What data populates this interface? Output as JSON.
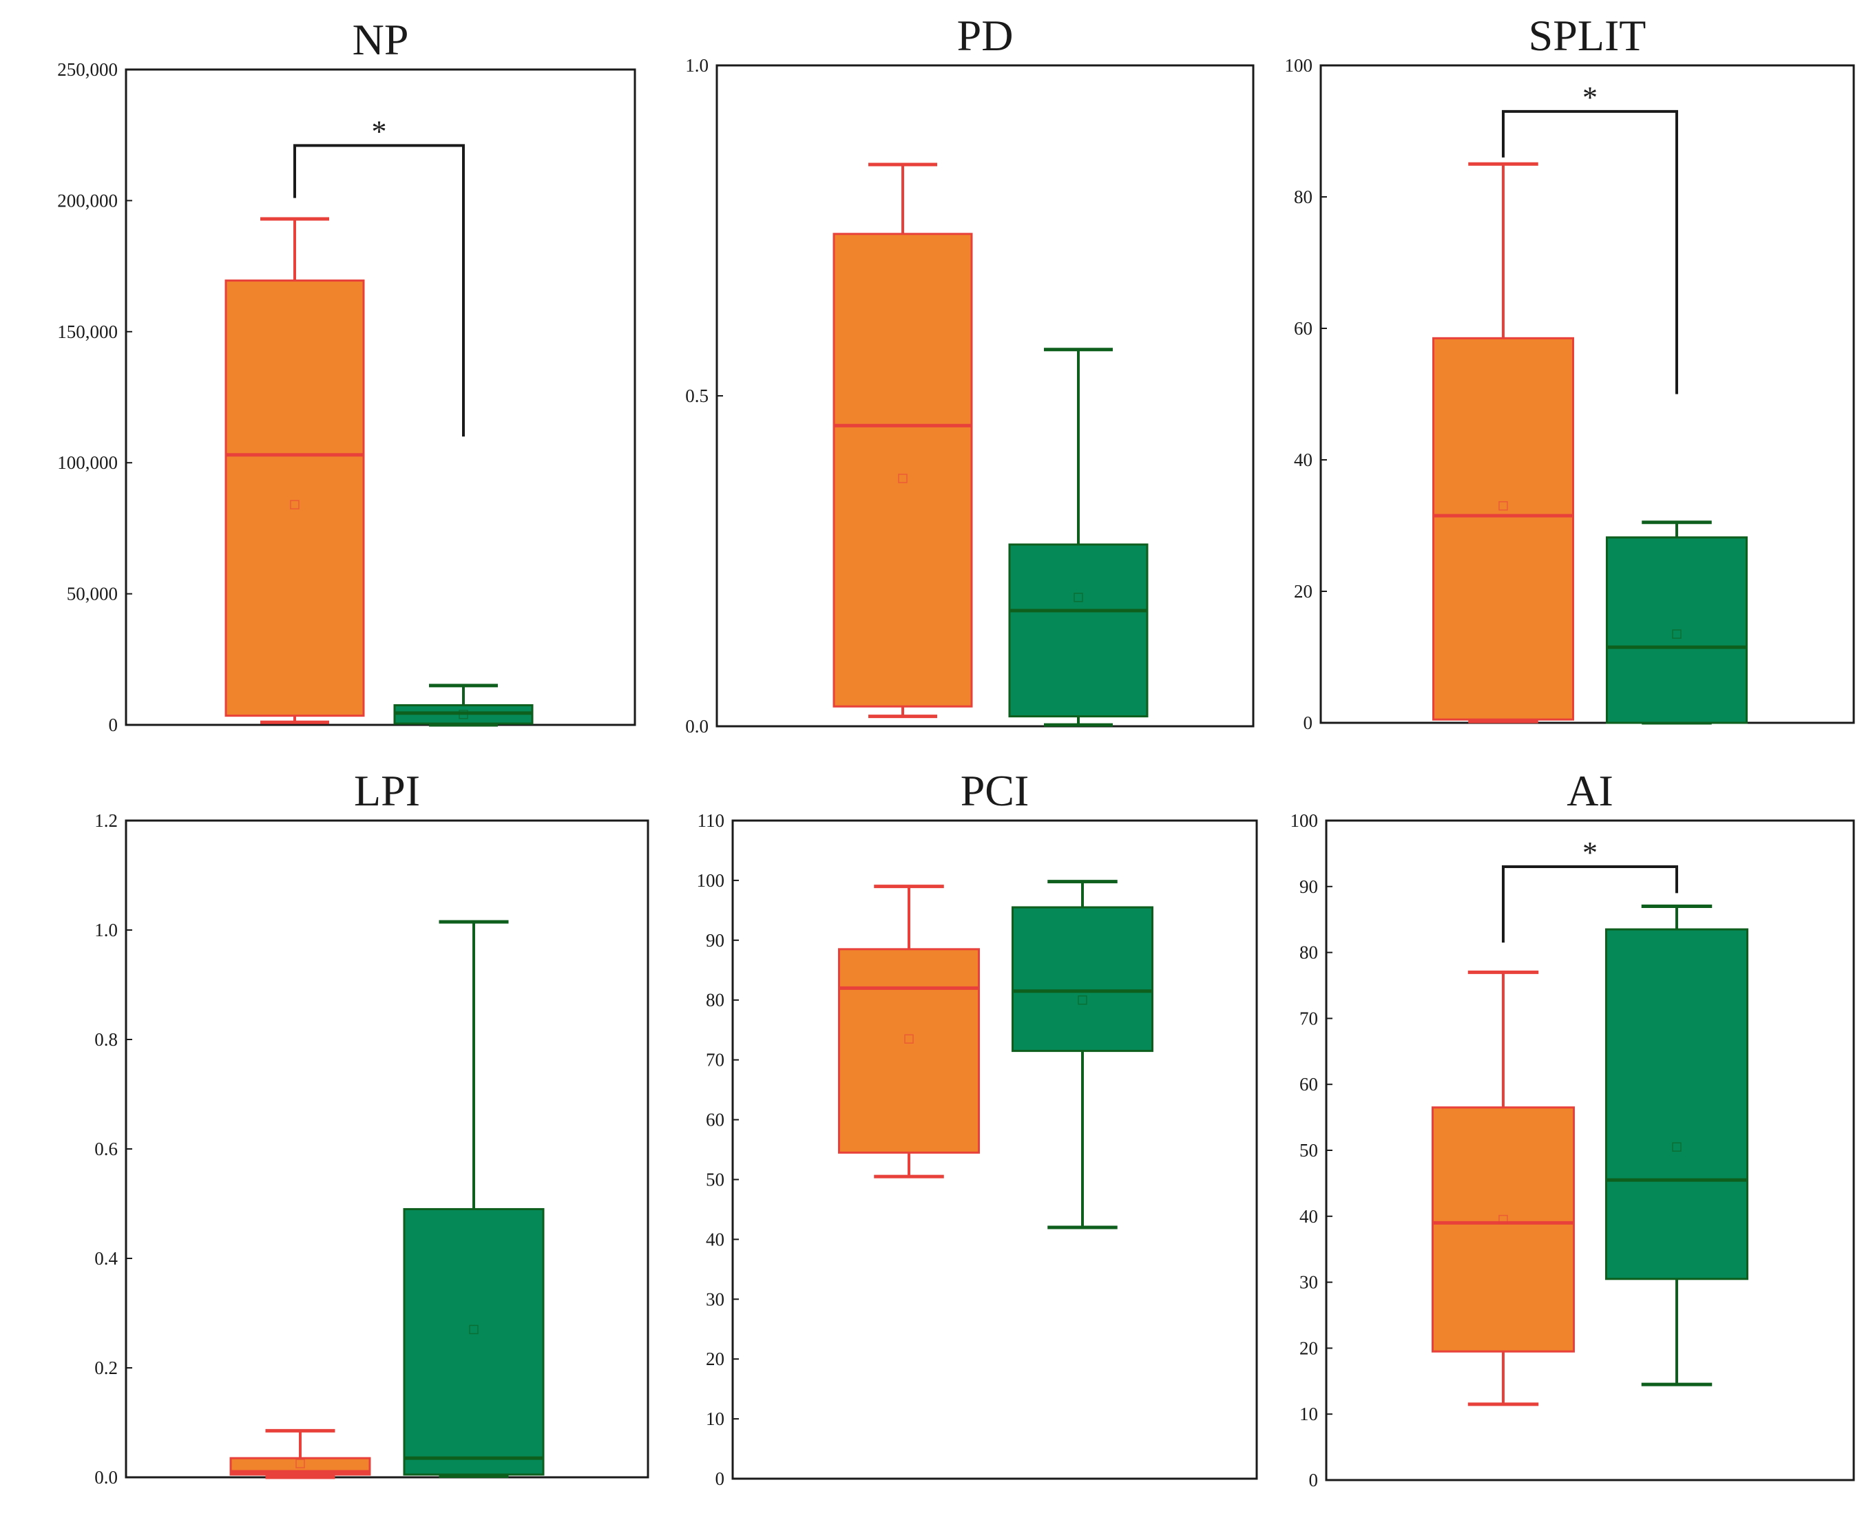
{
  "colors": {
    "group_a_fill": "#F0842C",
    "group_a_line": "#E8403A",
    "group_b_fill": "#058A57",
    "group_b_line": "#0E5E1E",
    "bracket": "#1a1a1a",
    "frame": "#1a1a1a"
  },
  "chart_data": [
    {
      "type": "box",
      "title": "NP",
      "ylim": [
        0,
        250000
      ],
      "yticks": [
        0,
        50000,
        100000,
        150000,
        200000,
        250000
      ],
      "ytick_labels": [
        "0",
        "50,000",
        "100,000",
        "150,000",
        "200,000",
        "250,000"
      ],
      "boxes": [
        {
          "group": "A",
          "min": 1000,
          "q1": 3500,
          "median": 103000,
          "q3": 169500,
          "max": 193000,
          "mean": 84000
        },
        {
          "group": "B",
          "min": 0,
          "q1": 500,
          "median": 4500,
          "q3": 7500,
          "max": 15000,
          "mean": 4000
        }
      ],
      "significance": {
        "label": "*",
        "between": [
          "A",
          "B"
        ],
        "bracket_y": 221000,
        "left_end": 201000,
        "right_end": 110000
      }
    },
    {
      "type": "box",
      "title": "PD",
      "ylim": [
        0,
        1.0
      ],
      "yticks": [
        0,
        0.5,
        1.0
      ],
      "ytick_labels": [
        "0.0",
        "0.5",
        "1.0"
      ],
      "boxes": [
        {
          "group": "A",
          "min": 0.015,
          "q1": 0.03,
          "median": 0.455,
          "q3": 0.745,
          "max": 0.85,
          "mean": 0.375
        },
        {
          "group": "B",
          "min": 0.002,
          "q1": 0.015,
          "median": 0.175,
          "q3": 0.275,
          "max": 0.57,
          "mean": 0.195
        }
      ]
    },
    {
      "type": "box",
      "title": "SPLIT",
      "ylim": [
        0,
        100
      ],
      "yticks": [
        0,
        20,
        40,
        60,
        80,
        100
      ],
      "ytick_labels": [
        "0",
        "20",
        "40",
        "60",
        "80",
        "100"
      ],
      "boxes": [
        {
          "group": "A",
          "min": 0.2,
          "q1": 0.5,
          "median": 31.5,
          "q3": 58.5,
          "max": 85,
          "mean": 33
        },
        {
          "group": "B",
          "min": 0,
          "q1": 0,
          "median": 11.5,
          "q3": 28.2,
          "max": 30.5,
          "mean": 13.5
        }
      ],
      "significance": {
        "label": "*",
        "between": [
          "A",
          "B"
        ],
        "bracket_y": 93,
        "left_end": 86,
        "right_end": 50
      }
    },
    {
      "type": "box",
      "title": "LPI",
      "ylim": [
        0,
        1.2
      ],
      "yticks": [
        0,
        0.2,
        0.4,
        0.6,
        0.8,
        1.0,
        1.2
      ],
      "ytick_labels": [
        "0.0",
        "0.2",
        "0.4",
        "0.6",
        "0.8",
        "1.0",
        "1.2"
      ],
      "boxes": [
        {
          "group": "A",
          "min": 0.0,
          "q1": 0.005,
          "median": 0.01,
          "q3": 0.035,
          "max": 0.085,
          "mean": 0.025
        },
        {
          "group": "B",
          "min": 0.002,
          "q1": 0.005,
          "median": 0.035,
          "q3": 0.49,
          "max": 1.015,
          "mean": 0.27
        }
      ]
    },
    {
      "type": "box",
      "title": "PCI",
      "ylim": [
        0,
        110
      ],
      "yticks": [
        0,
        10,
        20,
        30,
        40,
        50,
        60,
        70,
        80,
        90,
        100,
        110
      ],
      "ytick_labels": [
        "0",
        "10",
        "20",
        "30",
        "40",
        "50",
        "60",
        "70",
        "80",
        "90",
        "100",
        "110"
      ],
      "boxes": [
        {
          "group": "A",
          "min": 50.5,
          "q1": 54.5,
          "median": 82,
          "q3": 88.5,
          "max": 99,
          "mean": 73.5
        },
        {
          "group": "B",
          "min": 42,
          "q1": 71.5,
          "median": 81.5,
          "q3": 95.5,
          "max": 99.8,
          "mean": 80
        }
      ]
    },
    {
      "type": "box",
      "title": "AI",
      "ylim": [
        0,
        100
      ],
      "yticks": [
        0,
        10,
        20,
        30,
        40,
        50,
        60,
        70,
        80,
        90,
        100
      ],
      "ytick_labels": [
        "0",
        "10",
        "20",
        "30",
        "40",
        "50",
        "60",
        "70",
        "80",
        "90",
        "100"
      ],
      "boxes": [
        {
          "group": "A",
          "min": 11.5,
          "q1": 19.5,
          "median": 39,
          "q3": 56.5,
          "max": 77,
          "mean": 39.5
        },
        {
          "group": "B",
          "min": 14.5,
          "q1": 30.5,
          "median": 45.5,
          "q3": 83.5,
          "max": 87,
          "mean": 50.5
        }
      ],
      "significance": {
        "label": "*",
        "between": [
          "A",
          "B"
        ],
        "bracket_y": 93,
        "left_end": 81.5,
        "right_end": 89
      }
    }
  ]
}
